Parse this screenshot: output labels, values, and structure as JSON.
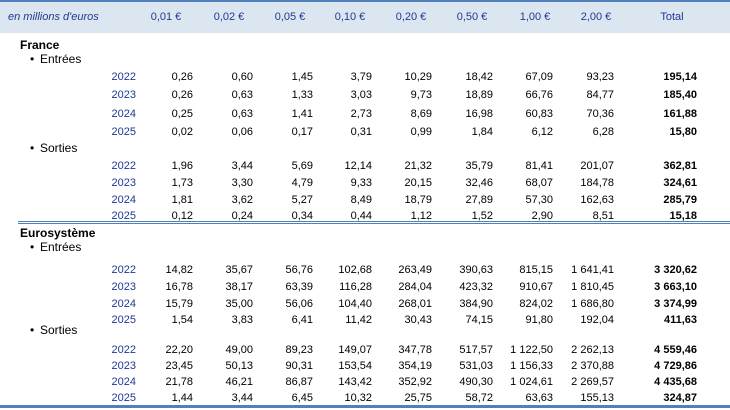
{
  "header": {
    "caption": "en millions d'euros",
    "columns": [
      "0,01 €",
      "0,02 €",
      "0,05 €",
      "0,10 €",
      "0,20 €",
      "0,50 €",
      "1,00 €",
      "2,00 €",
      "Total"
    ]
  },
  "sections": [
    {
      "region": "France",
      "groups": [
        {
          "label": "Entrées",
          "rows": [
            {
              "year": "2022",
              "values": [
                "0,26",
                "0,60",
                "1,45",
                "3,79",
                "10,29",
                "18,42",
                "67,09",
                "93,23",
                "195,14"
              ]
            },
            {
              "year": "2023",
              "values": [
                "0,26",
                "0,63",
                "1,33",
                "3,03",
                "9,73",
                "18,89",
                "66,76",
                "84,77",
                "185,40"
              ]
            },
            {
              "year": "2024",
              "values": [
                "0,25",
                "0,63",
                "1,41",
                "2,73",
                "8,69",
                "16,98",
                "60,83",
                "70,36",
                "161,88"
              ]
            },
            {
              "year": "2025",
              "values": [
                "0,02",
                "0,06",
                "0,17",
                "0,31",
                "0,99",
                "1,84",
                "6,12",
                "6,28",
                "15,80"
              ]
            }
          ]
        },
        {
          "label": "Sorties",
          "rows": [
            {
              "year": "2022",
              "values": [
                "1,96",
                "3,44",
                "5,69",
                "12,14",
                "21,32",
                "35,79",
                "81,41",
                "201,07",
                "362,81"
              ]
            },
            {
              "year": "2023",
              "values": [
                "1,73",
                "3,30",
                "4,79",
                "9,33",
                "20,15",
                "32,46",
                "68,07",
                "184,78",
                "324,61"
              ]
            },
            {
              "year": "2024",
              "values": [
                "1,81",
                "3,62",
                "5,27",
                "8,49",
                "18,79",
                "27,89",
                "57,30",
                "162,63",
                "285,79"
              ]
            },
            {
              "year": "2025",
              "values": [
                "0,12",
                "0,24",
                "0,34",
                "0,44",
                "1,12",
                "1,52",
                "2,90",
                "8,51",
                "15,18"
              ]
            }
          ]
        }
      ]
    },
    {
      "region": "Eurosystème",
      "groups": [
        {
          "label": "Entrées",
          "rows": [
            {
              "year": "2022",
              "values": [
                "14,82",
                "35,67",
                "56,76",
                "102,68",
                "263,49",
                "390,63",
                "815,15",
                "1 641,41",
                "3 320,62"
              ]
            },
            {
              "year": "2023",
              "values": [
                "16,78",
                "38,17",
                "63,39",
                "116,28",
                "284,04",
                "423,32",
                "910,67",
                "1 810,45",
                "3 663,10"
              ]
            },
            {
              "year": "2024",
              "values": [
                "15,79",
                "35,00",
                "56,06",
                "104,40",
                "268,01",
                "384,90",
                "824,02",
                "1 686,80",
                "3 374,99"
              ]
            },
            {
              "year": "2025",
              "values": [
                "1,54",
                "3,83",
                "6,41",
                "11,42",
                "30,43",
                "74,15",
                "91,80",
                "192,04",
                "411,63"
              ]
            }
          ]
        },
        {
          "label": "Sorties",
          "rows": [
            {
              "year": "2022",
              "values": [
                "22,20",
                "49,00",
                "89,23",
                "149,07",
                "347,78",
                "517,57",
                "1 122,50",
                "2 262,13",
                "4 559,46"
              ]
            },
            {
              "year": "2023",
              "values": [
                "23,45",
                "50,13",
                "90,31",
                "153,54",
                "354,19",
                "531,03",
                "1 156,33",
                "2 370,88",
                "4 729,86"
              ]
            },
            {
              "year": "2024",
              "values": [
                "21,78",
                "46,21",
                "86,87",
                "143,42",
                "352,92",
                "490,30",
                "1 024,61",
                "2 269,57",
                "4 435,68"
              ]
            },
            {
              "year": "2025",
              "values": [
                "1,44",
                "3,44",
                "6,45",
                "10,32",
                "25,75",
                "58,72",
                "63,63",
                "155,13",
                "324,87"
              ]
            }
          ]
        }
      ]
    }
  ]
}
